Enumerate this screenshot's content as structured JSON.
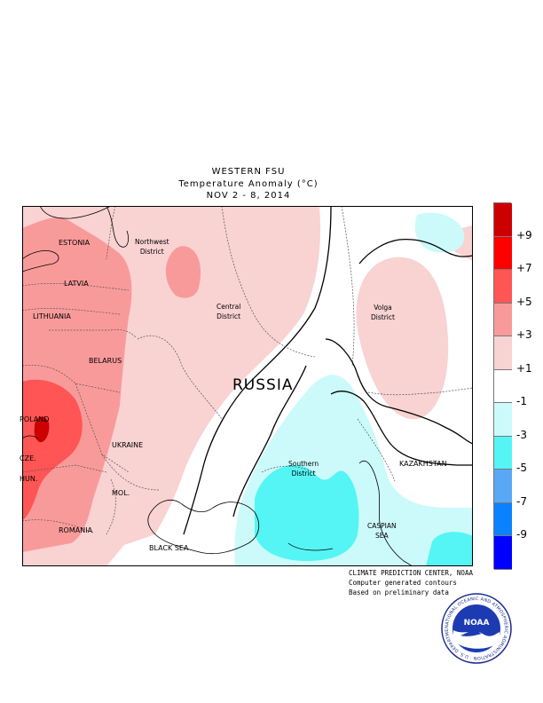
{
  "title": {
    "line1": "WESTERN FSU",
    "line2": "Temperature Anomaly (°C)",
    "line3": "NOV 2 - 8, 2014"
  },
  "regions": {
    "estonia": "ESTONIA",
    "latvia": "LATVIA",
    "lithuania": "LITHUANIA",
    "belarus": "BELARUS",
    "poland": "POLAND",
    "czech": "CZE.",
    "hungary": "HUN.",
    "romania": "ROMANIA",
    "moldova": "MOL.",
    "ukraine": "UKRAINE",
    "russia": "RUSSIA",
    "kazakhstan": "KAZAKHSTAN",
    "northwest_1": "Northwest",
    "northwest_2": "District",
    "central_1": "Central",
    "central_2": "District",
    "volga_1": "Volga",
    "volga_2": "District",
    "southern_1": "Southern",
    "southern_2": "District",
    "black_sea": "BLACK SEA",
    "caspian_1": "CASPIAN",
    "caspian_2": "SEA"
  },
  "legend": {
    "labels": [
      "+9",
      "+7",
      "+5",
      "+3",
      "+1",
      "-1",
      "-3",
      "-5",
      "-7",
      "-9"
    ],
    "colors": [
      "#cc0000",
      "#ff0000",
      "#ff5555",
      "#f99a9a",
      "#f9d2d2",
      "#ffffff",
      "#ccfafa",
      "#55f5f5",
      "#5aa8f5",
      "#0a82ff",
      "#0000ff"
    ]
  },
  "credits": {
    "line1": "CLIMATE PREDICTION CENTER, NOAA",
    "line2": "Computer generated contours",
    "line3": "Based on preliminary data"
  },
  "logo": {
    "center": "NOAA",
    "ring": "NATIONAL OCEANIC AND ATMOSPHERIC ADMINISTRATION · U.S. DEPARTMENT OF COMMERCE"
  }
}
